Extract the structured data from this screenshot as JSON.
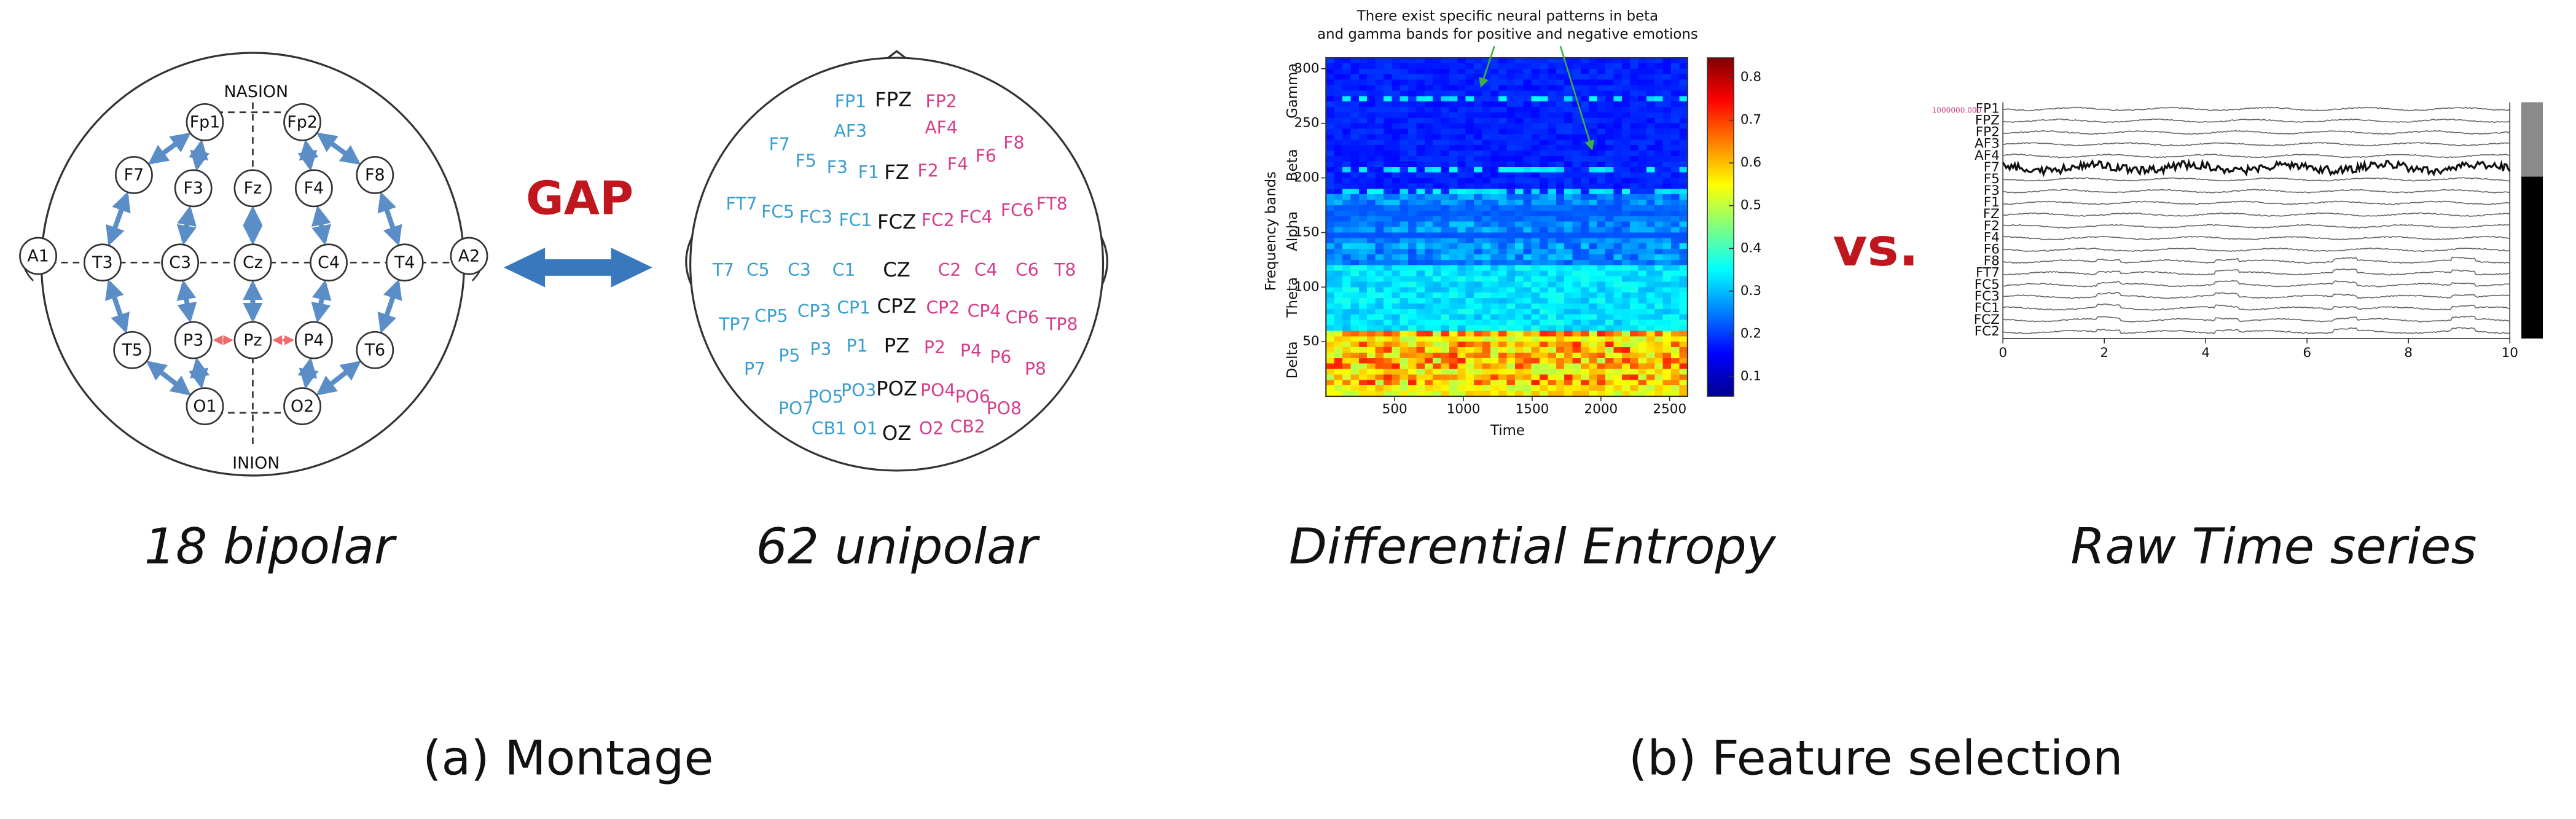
{
  "bipolar": {
    "nasion": "NASION",
    "inion": "INION",
    "electrodes": [
      "Fp1",
      "Fp2",
      "F7",
      "F3",
      "Fz",
      "F4",
      "F8",
      "A1",
      "T3",
      "C3",
      "Cz",
      "C4",
      "T4",
      "A2",
      "T5",
      "P3",
      "Pz",
      "P4",
      "T6",
      "O1",
      "O2"
    ],
    "arrow_color": "#5b8ec7",
    "caption": "18 bipolar"
  },
  "gap": "GAP",
  "unipolar": {
    "groups": [
      {
        "color": "#3a9fd0",
        "labels": [
          "FP1",
          "AF3",
          "F7",
          "F5",
          "F3",
          "F1",
          "FT7",
          "FC5",
          "FC3",
          "FC1",
          "T7",
          "C5",
          "C3",
          "C1",
          "TP7",
          "CP5",
          "CP3",
          "CP1",
          "P7",
          "P5",
          "P3",
          "P1",
          "PO7",
          "PO5",
          "PO3",
          "CB1",
          "O1"
        ]
      },
      {
        "color": "#111111",
        "labels": [
          "FPZ",
          "FZ",
          "FCZ",
          "CZ",
          "CPZ",
          "PZ",
          "POZ",
          "OZ"
        ]
      },
      {
        "color": "#d63e8c",
        "labels": [
          "FP2",
          "AF4",
          "F2",
          "F4",
          "F6",
          "F8",
          "FC2",
          "FC4",
          "FC6",
          "FT8",
          "C2",
          "C4",
          "C6",
          "T8",
          "CP2",
          "CP4",
          "CP6",
          "TP8",
          "P2",
          "P4",
          "P6",
          "P8",
          "PO4",
          "PO6",
          "PO8",
          "O2",
          "CB2"
        ]
      }
    ],
    "caption": "62 unipolar"
  },
  "montage_caption": "(a) Montage",
  "entropy": {
    "annotation": [
      "There exist specific neural patterns in beta",
      "and gamma bands for positive and negative emotions"
    ],
    "xlabel": "Time",
    "ylabel": "Frequency bands",
    "bands": [
      "Delta",
      "Theta",
      "Alpha",
      "Beta",
      "Gamma"
    ],
    "xlim": [
      0,
      2630
    ],
    "xticks": [
      500,
      1000,
      1500,
      2000,
      2500
    ],
    "ylim": [
      0,
      310
    ],
    "yticks": [
      50,
      100,
      150,
      200,
      250,
      300
    ],
    "clim": [
      0.054,
      0.846
    ],
    "cticks": [
      0.1,
      0.2,
      0.3,
      0.4,
      0.5,
      0.6,
      0.7,
      0.8
    ],
    "caption": "Differential Entropy"
  },
  "vs": "vs.",
  "timeseries": {
    "scale_label": "1000000.000",
    "channels": [
      "FP1",
      "FPZ",
      "FP2",
      "AF3",
      "AF4",
      "F7",
      "F5",
      "F3",
      "F1",
      "FZ",
      "F2",
      "F4",
      "F6",
      "F8",
      "FT7",
      "FC5",
      "FC3",
      "FC1",
      "FCZ",
      "FC2"
    ],
    "xlim": [
      0,
      10
    ],
    "xticks": [
      0,
      2,
      4,
      6,
      8,
      10
    ],
    "caption": "Raw Time series"
  },
  "feature_caption": "(b) Feature selection"
}
